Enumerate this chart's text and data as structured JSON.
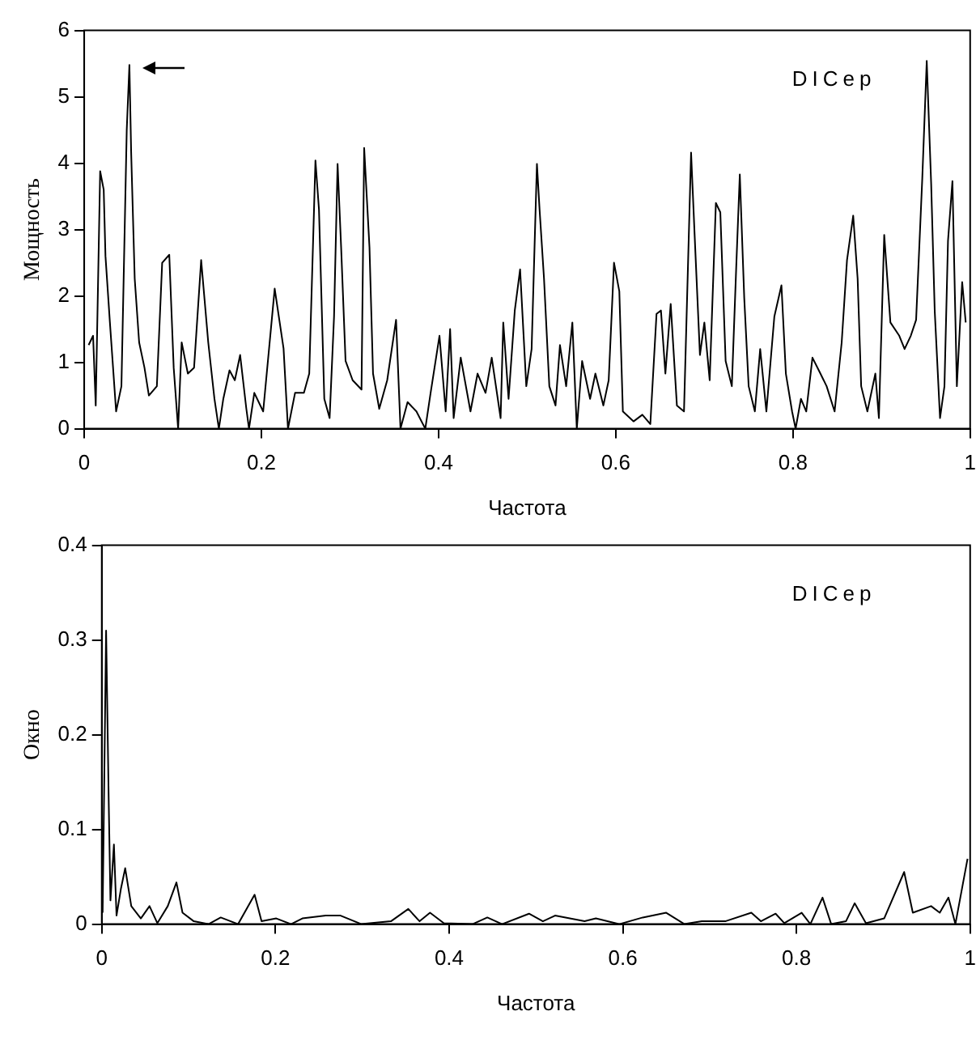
{
  "chart_data": [
    {
      "type": "line",
      "xlabel": "Частота",
      "ylabel": "Мощность",
      "annotations": [
        "DICep"
      ],
      "xlim": [
        0,
        1
      ],
      "ylim": [
        0,
        6
      ],
      "xticks": [
        0,
        0.2,
        0.4,
        0.6,
        0.8,
        1
      ],
      "yticks": [
        0,
        1,
        2,
        3,
        4,
        5,
        6
      ],
      "grid": false,
      "legend": false,
      "marker": "none",
      "line_style": "solid",
      "series": [
        {
          "color": "#000000",
          "x": [
            0.005,
            0.01,
            0.013,
            0.018,
            0.022,
            0.024,
            0.029,
            0.036,
            0.042,
            0.048,
            0.051,
            0.053,
            0.057,
            0.062,
            0.068,
            0.073,
            0.082,
            0.088,
            0.096,
            0.101,
            0.106,
            0.11,
            0.117,
            0.124,
            0.132,
            0.14,
            0.147,
            0.152,
            0.157,
            0.164,
            0.17,
            0.176,
            0.183,
            0.186,
            0.192,
            0.202,
            0.215,
            0.225,
            0.23,
            0.238,
            0.248,
            0.254,
            0.261,
            0.265,
            0.271,
            0.277,
            0.282,
            0.286,
            0.29,
            0.295,
            0.303,
            0.313,
            0.316,
            0.322,
            0.326,
            0.333,
            0.342,
            0.352,
            0.357,
            0.365,
            0.375,
            0.385,
            0.391,
            0.401,
            0.408,
            0.413,
            0.417,
            0.425,
            0.436,
            0.444,
            0.453,
            0.46,
            0.47,
            0.473,
            0.479,
            0.486,
            0.492,
            0.499,
            0.505,
            0.511,
            0.514,
            0.519,
            0.525,
            0.532,
            0.537,
            0.544,
            0.551,
            0.556,
            0.562,
            0.571,
            0.577,
            0.586,
            0.592,
            0.598,
            0.604,
            0.608,
            0.62,
            0.63,
            0.639,
            0.646,
            0.651,
            0.656,
            0.662,
            0.669,
            0.677,
            0.685,
            0.689,
            0.695,
            0.7,
            0.706,
            0.713,
            0.718,
            0.724,
            0.731,
            0.736,
            0.74,
            0.745,
            0.75,
            0.757,
            0.763,
            0.77,
            0.779,
            0.787,
            0.792,
            0.799,
            0.803,
            0.809,
            0.815,
            0.822,
            0.831,
            0.838,
            0.847,
            0.855,
            0.861,
            0.868,
            0.873,
            0.877,
            0.884,
            0.893,
            0.897,
            0.903,
            0.91,
            0.92,
            0.926,
            0.933,
            0.939,
            0.946,
            0.951,
            0.956,
            0.96,
            0.966,
            0.971,
            0.975,
            0.98,
            0.985,
            0.991,
            0.995
          ],
          "values": [
            1.26,
            1.4,
            0.35,
            3.88,
            3.6,
            2.6,
            1.6,
            0.26,
            0.64,
            4.5,
            5.48,
            4.16,
            2.26,
            1.3,
            0.92,
            0.5,
            0.64,
            2.5,
            2.62,
            0.92,
            0,
            1.3,
            0.83,
            0.92,
            2.54,
            1.3,
            0.45,
            0,
            0.45,
            0.88,
            0.73,
            1.11,
            0.3,
            0,
            0.54,
            0.26,
            2.11,
            1.21,
            0,
            0.54,
            0.54,
            0.83,
            4.04,
            3.3,
            0.45,
            0.16,
            1.69,
            3.99,
            2.73,
            1.02,
            0.73,
            0.59,
            4.23,
            2.73,
            0.83,
            0.3,
            0.73,
            1.64,
            0,
            0.4,
            0.26,
            0,
            0.54,
            1.4,
            0.26,
            1.5,
            0.16,
            1.07,
            0.26,
            0.83,
            0.54,
            1.07,
            0.16,
            1.6,
            0.45,
            1.78,
            2.4,
            0.64,
            1.2,
            3.99,
            3.3,
            2.26,
            0.64,
            0.35,
            1.26,
            0.64,
            1.6,
            0,
            1.02,
            0.45,
            0.83,
            0.35,
            0.73,
            2.5,
            2.07,
            0.26,
            0.11,
            0.21,
            0.07,
            1.73,
            1.78,
            0.83,
            1.88,
            0.35,
            0.26,
            4.16,
            2.92,
            1.11,
            1.6,
            0.73,
            3.4,
            3.26,
            1.02,
            0.64,
            2.45,
            3.83,
            1.97,
            0.64,
            0.26,
            1.2,
            0.26,
            1.69,
            2.16,
            0.83,
            0.26,
            0,
            0.45,
            0.26,
            1.07,
            0.83,
            0.64,
            0.26,
            1.3,
            2.54,
            3.21,
            2.26,
            0.64,
            0.26,
            0.83,
            0.16,
            2.92,
            1.6,
            1.4,
            1.2,
            1.4,
            1.64,
            3.78,
            5.54,
            3.69,
            1.78,
            0.16,
            0.64,
            2.83,
            3.73,
            0.64,
            2.21,
            1.6
          ]
        }
      ]
    },
    {
      "type": "line",
      "xlabel": "Частота",
      "ylabel": "Окно",
      "annotations": [
        "DICep"
      ],
      "xlim": [
        0,
        1
      ],
      "ylim": [
        0,
        0.4
      ],
      "xticks": [
        0,
        0.2,
        0.4,
        0.6,
        0.8,
        1
      ],
      "yticks": [
        0,
        0.1,
        0.2,
        0.3,
        0.4
      ],
      "grid": false,
      "legend": false,
      "marker": "none",
      "line_style": "solid",
      "series": [
        {
          "color": "#000000",
          "x": [
            0.001,
            0.005,
            0.008,
            0.01,
            0.014,
            0.017,
            0.022,
            0.027,
            0.034,
            0.045,
            0.055,
            0.064,
            0.076,
            0.086,
            0.093,
            0.106,
            0.123,
            0.137,
            0.157,
            0.176,
            0.184,
            0.201,
            0.218,
            0.231,
            0.258,
            0.275,
            0.299,
            0.333,
            0.353,
            0.366,
            0.378,
            0.394,
            0.427,
            0.444,
            0.461,
            0.492,
            0.508,
            0.522,
            0.556,
            0.569,
            0.596,
            0.623,
            0.65,
            0.671,
            0.691,
            0.718,
            0.748,
            0.759,
            0.776,
            0.786,
            0.806,
            0.816,
            0.83,
            0.84,
            0.857,
            0.867,
            0.88,
            0.901,
            0.924,
            0.934,
            0.955,
            0.965,
            0.975,
            0.983,
            0.997
          ],
          "values": [
            0.012,
            0.31,
            0.13,
            0.025,
            0.084,
            0.009,
            0.037,
            0.059,
            0.019,
            0.006,
            0.019,
            0.001,
            0.019,
            0.044,
            0.012,
            0.003,
            0,
            0.007,
            0,
            0.031,
            0.003,
            0.006,
            0,
            0.006,
            0.009,
            0.009,
            0,
            0.003,
            0.016,
            0.003,
            0.012,
            0.001,
            0,
            0.007,
            0,
            0.011,
            0.003,
            0.009,
            0.003,
            0.006,
            0,
            0.007,
            0.012,
            0,
            0.003,
            0.003,
            0.012,
            0.003,
            0.011,
            0.001,
            0.012,
            0,
            0.028,
            0,
            0.003,
            0.022,
            0.001,
            0.006,
            0.055,
            0.012,
            0.019,
            0.012,
            0.028,
            0,
            0.069
          ]
        }
      ]
    }
  ]
}
